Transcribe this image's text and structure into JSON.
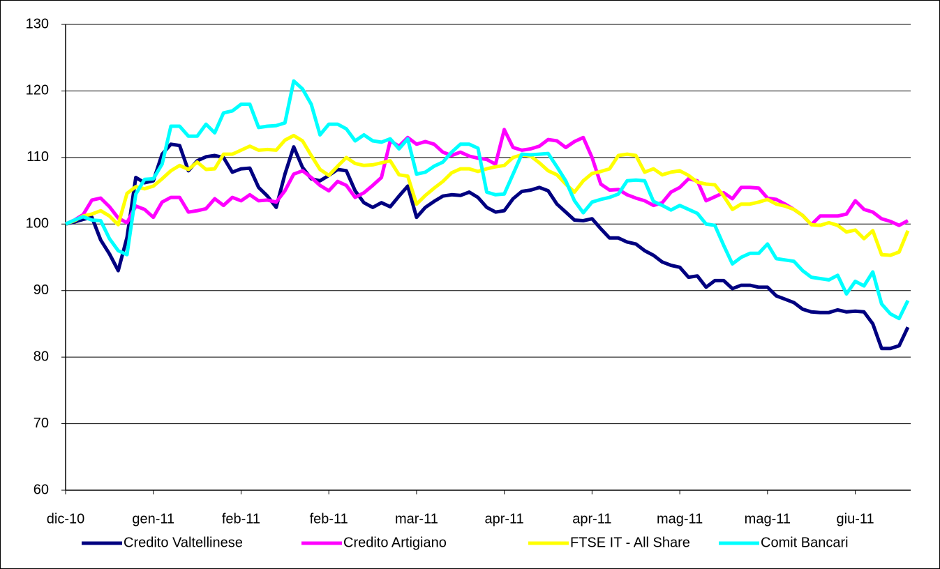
{
  "chart_data": {
    "type": "line",
    "categories": [
      "dic-10",
      null,
      null,
      null,
      null,
      null,
      null,
      null,
      null,
      null,
      "gen-11",
      null,
      null,
      null,
      null,
      null,
      null,
      null,
      null,
      null,
      "feb-11",
      null,
      null,
      null,
      null,
      null,
      null,
      null,
      null,
      null,
      "feb-11",
      null,
      null,
      null,
      null,
      null,
      null,
      null,
      null,
      null,
      "mar-11",
      null,
      null,
      null,
      null,
      null,
      null,
      null,
      null,
      null,
      "apr-11",
      null,
      null,
      null,
      null,
      null,
      null,
      null,
      null,
      null,
      "apr-11",
      null,
      null,
      null,
      null,
      null,
      null,
      null,
      null,
      null,
      "mag-11",
      null,
      null,
      null,
      null,
      null,
      null,
      null,
      null,
      null,
      "mag-11",
      null,
      null,
      null,
      null,
      null,
      null,
      null,
      null,
      null,
      "giu-11",
      null,
      null,
      null,
      null,
      null,
      null
    ],
    "series": [
      {
        "name": "Credito Valtellinese",
        "color": "#000080",
        "values": [
          100,
          100.3,
          100.7,
          101,
          97.6,
          95.5,
          93,
          98,
          107,
          106.2,
          106.5,
          110.5,
          112,
          111.8,
          108,
          109.5,
          110.1,
          110.3,
          110,
          107.8,
          108.3,
          108.4,
          105.5,
          104.2,
          102.5,
          107.5,
          111.6,
          108.5,
          106.8,
          106.5,
          107.3,
          108.2,
          108,
          105,
          103.2,
          102.5,
          103.2,
          102.6,
          104.2,
          105.7,
          101,
          102.5,
          103.4,
          104.2,
          104.4,
          104.3,
          104.8,
          104,
          102.5,
          101.8,
          102,
          103.8,
          104.9,
          105.1,
          105.5,
          105,
          103,
          101.8,
          100.6,
          100.5,
          100.8,
          99.3,
          97.9,
          97.9,
          97.3,
          97,
          96,
          95.3,
          94.3,
          93.8,
          93.5,
          92,
          92.2,
          90.5,
          91.5,
          91.5,
          90.3,
          90.8,
          90.8,
          90.5,
          90.5,
          89.2,
          88.7,
          88.2,
          87.2,
          86.8,
          86.7,
          86.7,
          87.1,
          86.8,
          86.9,
          86.8,
          85,
          81.3,
          81.3,
          81.7,
          84.5
        ]
      },
      {
        "name": "Credito Artigiano",
        "color": "#ff00ff",
        "values": [
          100,
          100.6,
          101.4,
          103.6,
          103.9,
          102.6,
          100.9,
          100.2,
          102.7,
          102.2,
          101,
          103.3,
          104,
          104,
          101.8,
          102,
          102.3,
          103.8,
          102.8,
          104,
          103.5,
          104.4,
          103.5,
          103.6,
          103.3,
          105,
          107.5,
          108,
          107,
          105.8,
          105,
          106.4,
          105.8,
          104,
          104.7,
          105.8,
          107,
          112.5,
          111.7,
          113,
          112,
          112.4,
          112,
          110.8,
          110.3,
          110.8,
          110.2,
          109.9,
          109.7,
          109,
          114.2,
          111.5,
          111.1,
          111.3,
          111.7,
          112.7,
          112.5,
          111.5,
          112.4,
          113,
          110,
          106,
          105.1,
          105.2,
          104.4,
          103.9,
          103.5,
          102.8,
          103.2,
          104.8,
          105.5,
          106.8,
          106.5,
          103.5,
          104.1,
          104.7,
          103.8,
          105.5,
          105.5,
          105.4,
          103.9,
          103.7,
          103,
          102.2,
          101.3,
          99.9,
          101.2,
          101.2,
          101.2,
          101.5,
          103.5,
          102.2,
          101.8,
          100.8,
          100.4,
          99.8,
          100.5
        ]
      },
      {
        "name": "FTSE IT - All Share",
        "color": "#ffff00",
        "values": [
          100,
          100.5,
          101.2,
          101.5,
          102,
          101.2,
          99.9,
          104.6,
          105.6,
          105.3,
          105.7,
          106.8,
          108,
          108.8,
          108.2,
          109.3,
          108.2,
          108.3,
          110.5,
          110.5,
          111.1,
          111.7,
          111.1,
          111.2,
          111.1,
          112.6,
          113.3,
          112.5,
          110.3,
          108.2,
          107.3,
          108.7,
          110,
          109.1,
          108.8,
          108.9,
          109.2,
          109.5,
          107.4,
          107.2,
          103,
          104.3,
          105.4,
          106.4,
          107.7,
          108.3,
          108.3,
          107.9,
          108.3,
          108.6,
          108.8,
          110,
          110.4,
          110.2,
          109.2,
          108,
          107.4,
          106,
          104.8,
          106.5,
          107.6,
          107.9,
          108.3,
          110.3,
          110.5,
          110.3,
          107.8,
          108.3,
          107.4,
          107.8,
          108,
          107.3,
          106.3,
          106,
          105.9,
          104.2,
          102.2,
          103,
          103,
          103.3,
          103.7,
          103,
          102.7,
          102.2,
          101.3,
          99.9,
          99.8,
          100.2,
          99.8,
          98.8,
          99.1,
          97.8,
          99,
          95.4,
          95.3,
          95.8,
          99
        ]
      },
      {
        "name": "Comit Bancari",
        "color": "#00ffff",
        "values": [
          100,
          100.6,
          101.1,
          100.6,
          100.5,
          97.8,
          96,
          95.4,
          104.5,
          106.7,
          106.8,
          109,
          114.7,
          114.7,
          113.2,
          113.2,
          115,
          113.7,
          116.7,
          117,
          118,
          118,
          114.5,
          114.7,
          114.8,
          115.2,
          121.5,
          120.3,
          118,
          113.4,
          115,
          115,
          114.3,
          112.5,
          113.4,
          112.5,
          112.3,
          112.8,
          111.3,
          112.8,
          107.5,
          107.8,
          108.7,
          109.3,
          110.8,
          112,
          112,
          111.4,
          104.8,
          104.4,
          104.5,
          107.5,
          110.5,
          110.4,
          110.5,
          110.6,
          108.6,
          106.5,
          103.5,
          101.7,
          103.3,
          103.7,
          104,
          104.5,
          106.5,
          106.6,
          106.5,
          103.4,
          102.8,
          102.1,
          102.8,
          102.2,
          101.6,
          100,
          99.8,
          96.8,
          94,
          95,
          95.6,
          95.6,
          97,
          94.8,
          94.6,
          94.4,
          93,
          92,
          91.8,
          91.6,
          92.3,
          89.5,
          91.4,
          90.7,
          92.8,
          88,
          86.5,
          85.8,
          88.5
        ]
      }
    ],
    "ylim": [
      60,
      130
    ],
    "yticks": [
      60,
      70,
      80,
      90,
      100,
      110,
      120,
      130
    ],
    "grid": true,
    "legend": "bottom"
  }
}
